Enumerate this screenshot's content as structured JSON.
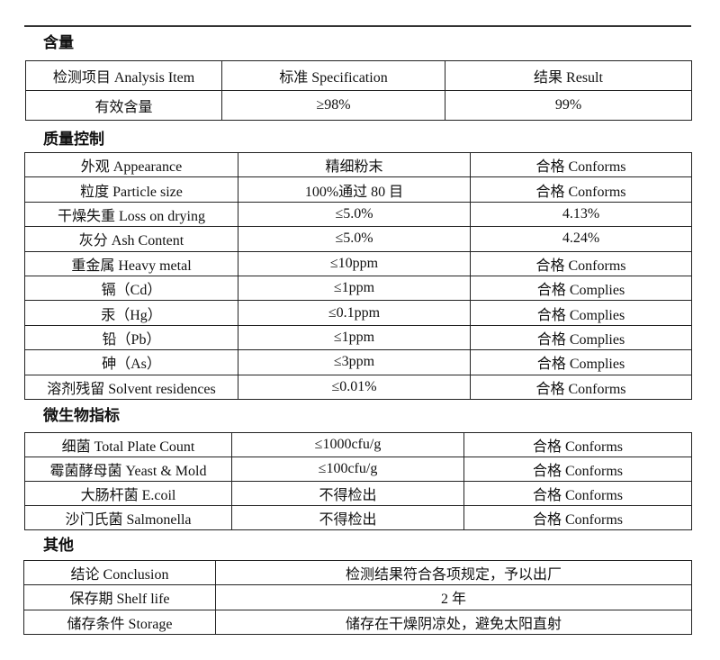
{
  "sections": [
    {
      "title": "含量",
      "rows": [
        [
          "检测项目  Analysis Item",
          "标准    Specification",
          "结果  Result"
        ],
        [
          "有效含量",
          "≥98%",
          "99%"
        ]
      ]
    },
    {
      "title": "质量控制",
      "rows": [
        [
          "外观 Appearance",
          "精细粉末",
          "合格 Conforms"
        ],
        [
          "粒度  Particle size",
          "100%通过 80 目",
          "合格 Conforms"
        ],
        [
          "干燥失重 Loss on drying",
          "≤5.0%",
          "4.13%"
        ],
        [
          "灰分 Ash Content",
          "≤5.0%",
          "4.24%"
        ],
        [
          "重金属  Heavy metal",
          "≤10ppm",
          "合格 Conforms"
        ],
        [
          "镉（Cd）",
          "≤1ppm",
          "合格 Complies"
        ],
        [
          "汞（Hg）",
          "≤0.1ppm",
          "合格 Complies"
        ],
        [
          "铅（Pb）",
          "≤1ppm",
          "合格 Complies"
        ],
        [
          "砷（As）",
          "≤3ppm",
          "合格 Complies"
        ],
        [
          "溶剂残留 Solvent residences",
          "≤0.01%",
          "合格 Conforms"
        ]
      ]
    },
    {
      "title": "微生物指标",
      "rows": [
        [
          "细菌  Total Plate Count",
          "≤1000cfu/g",
          "合格 Conforms"
        ],
        [
          "霉菌酵母菌  Yeast & Mold",
          "≤100cfu/g",
          "合格 Conforms"
        ],
        [
          "大肠杆菌    E.coil",
          "不得检出",
          "合格 Conforms"
        ],
        [
          "沙门氏菌    Salmonella",
          "不得检出",
          "合格 Conforms"
        ]
      ]
    },
    {
      "title": "其他",
      "rows": [
        [
          "结论  Conclusion",
          "检测结果符合各项规定，予以出厂"
        ],
        [
          "保存期  Shelf life",
          "2 年"
        ],
        [
          "储存条件 Storage",
          "储存在干燥阴凉处，避免太阳直射"
        ]
      ]
    }
  ]
}
